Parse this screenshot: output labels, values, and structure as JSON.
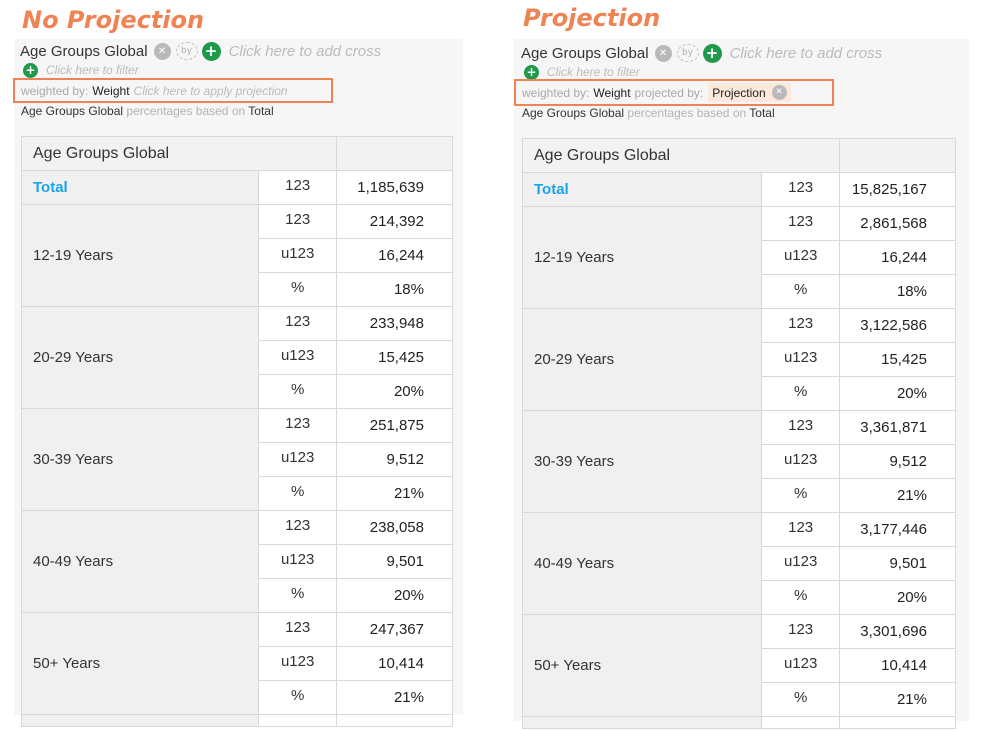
{
  "panels": [
    {
      "heading": "No Projection",
      "dimension": "Age Groups Global",
      "add_cross_hint": "Click here to add cross",
      "filter_hint": "Click here to filter",
      "weighted_by_label": "weighted by:",
      "weight_value": "Weight",
      "projection_hint": "Click here to apply projection",
      "based_dimension": "Age Groups Global",
      "based_text": "percentages based on",
      "based_value": "Total",
      "table_header": "Age Groups Global",
      "total_label": "Total",
      "total_stat": "123",
      "total_value": "1,185,639",
      "groups": [
        {
          "label": "12-19 Years",
          "rows": [
            {
              "stat": "123",
              "value": "214,392"
            },
            {
              "stat": "u123",
              "value": "16,244"
            },
            {
              "stat": "%",
              "value": "18%"
            }
          ]
        },
        {
          "label": "20-29 Years",
          "rows": [
            {
              "stat": "123",
              "value": "233,948"
            },
            {
              "stat": "u123",
              "value": "15,425"
            },
            {
              "stat": "%",
              "value": "20%"
            }
          ]
        },
        {
          "label": "30-39 Years",
          "rows": [
            {
              "stat": "123",
              "value": "251,875"
            },
            {
              "stat": "u123",
              "value": "9,512"
            },
            {
              "stat": "%",
              "value": "21%"
            }
          ]
        },
        {
          "label": "40-49 Years",
          "rows": [
            {
              "stat": "123",
              "value": "238,058"
            },
            {
              "stat": "u123",
              "value": "9,501"
            },
            {
              "stat": "%",
              "value": "20%"
            }
          ]
        },
        {
          "label": "50+ Years",
          "rows": [
            {
              "stat": "123",
              "value": "247,367"
            },
            {
              "stat": "u123",
              "value": "10,414"
            },
            {
              "stat": "%",
              "value": "21%"
            }
          ]
        }
      ]
    },
    {
      "heading": "Projection",
      "dimension": "Age Groups Global",
      "add_cross_hint": "Click here to add cross",
      "filter_hint": "Click here to filter",
      "weighted_by_label": "weighted by:",
      "weight_value": "Weight",
      "projected_by_label": "projected by:",
      "projection_value": "Projection",
      "based_dimension": "Age Groups Global",
      "based_text": "percentages based on",
      "based_value": "Total",
      "table_header": "Age Groups Global",
      "total_label": "Total",
      "total_stat": "123",
      "total_value": "15,825,167",
      "groups": [
        {
          "label": "12-19 Years",
          "rows": [
            {
              "stat": "123",
              "value": "2,861,568"
            },
            {
              "stat": "u123",
              "value": "16,244"
            },
            {
              "stat": "%",
              "value": "18%"
            }
          ]
        },
        {
          "label": "20-29 Years",
          "rows": [
            {
              "stat": "123",
              "value": "3,122,586"
            },
            {
              "stat": "u123",
              "value": "15,425"
            },
            {
              "stat": "%",
              "value": "20%"
            }
          ]
        },
        {
          "label": "30-39 Years",
          "rows": [
            {
              "stat": "123",
              "value": "3,361,871"
            },
            {
              "stat": "u123",
              "value": "9,512"
            },
            {
              "stat": "%",
              "value": "21%"
            }
          ]
        },
        {
          "label": "40-49 Years",
          "rows": [
            {
              "stat": "123",
              "value": "3,177,446"
            },
            {
              "stat": "u123",
              "value": "9,501"
            },
            {
              "stat": "%",
              "value": "20%"
            }
          ]
        },
        {
          "label": "50+ Years",
          "rows": [
            {
              "stat": "123",
              "value": "3,301,696"
            },
            {
              "stat": "u123",
              "value": "10,414"
            },
            {
              "stat": "%",
              "value": "21%"
            }
          ]
        }
      ]
    }
  ],
  "colors": {
    "accent": "#ef8354",
    "total": "#1aa3e8",
    "add": "#1f9a4a"
  },
  "icons": [
    "remove-icon",
    "by-icon",
    "add-icon"
  ]
}
